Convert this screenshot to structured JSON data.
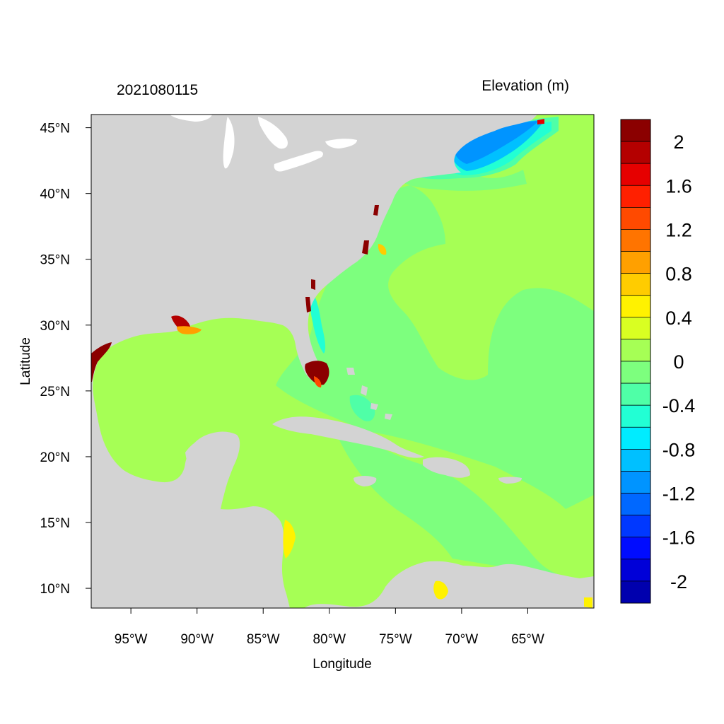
{
  "title_left": "2021080115",
  "title_right": "Elevation (m)",
  "x_axis_label": "Longitude",
  "y_axis_label": "Latitude",
  "map": {
    "lon_range": [
      -98,
      -60
    ],
    "lat_range": [
      8.5,
      46
    ],
    "x_ticks": [
      {
        "value": -95,
        "label": "95°W"
      },
      {
        "value": -90,
        "label": "90°W"
      },
      {
        "value": -85,
        "label": "85°W"
      },
      {
        "value": -80,
        "label": "80°W"
      },
      {
        "value": -75,
        "label": "75°W"
      },
      {
        "value": -70,
        "label": "70°W"
      },
      {
        "value": -65,
        "label": "65°W"
      }
    ],
    "y_ticks": [
      {
        "value": 45,
        "label": "45°N"
      },
      {
        "value": 40,
        "label": "40°N"
      },
      {
        "value": 35,
        "label": "35°N"
      },
      {
        "value": 30,
        "label": "30°N"
      },
      {
        "value": 25,
        "label": "25°N"
      },
      {
        "value": 20,
        "label": "20°N"
      },
      {
        "value": 15,
        "label": "15°N"
      },
      {
        "value": 10,
        "label": "10°N"
      }
    ],
    "land_color": "#d3d3d3",
    "ocean_base_color": "#a6ff55"
  },
  "colorbar": {
    "colors": [
      "#8b0000",
      "#b40000",
      "#e60000",
      "#ff2000",
      "#ff4a00",
      "#ff7400",
      "#ffa000",
      "#ffcc00",
      "#fff200",
      "#d9ff22",
      "#a6ff55",
      "#7dff7e",
      "#4fffa7",
      "#22ffd4",
      "#00ecff",
      "#00c0ff",
      "#0094ff",
      "#0068ff",
      "#0038ff",
      "#000cff",
      "#0000d8",
      "#0000ae"
    ],
    "labels": [
      "2",
      "1.6",
      "1.2",
      "0.8",
      "0.4",
      "0",
      "-0.4",
      "-0.8",
      "-1.2",
      "-1.6",
      "-2"
    ]
  }
}
